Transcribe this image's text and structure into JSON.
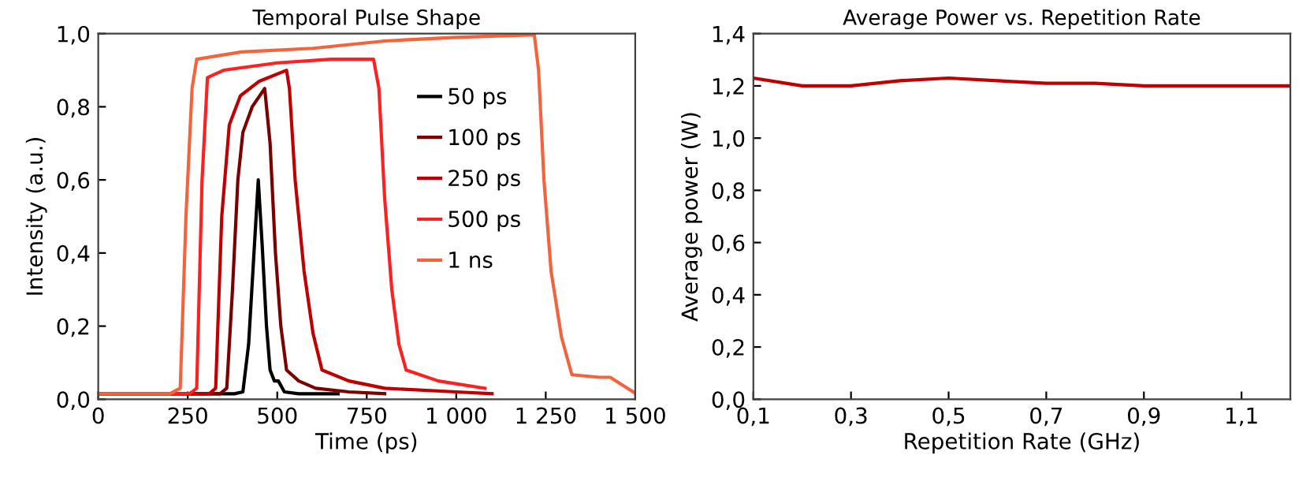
{
  "chart_data": [
    {
      "type": "line",
      "title": "Temporal Pulse Shape",
      "xlabel": "Time (ps)",
      "ylabel": "Intensity (a.u.)",
      "xlim": [
        0,
        1500
      ],
      "ylim": [
        0,
        1.0
      ],
      "xticks": [
        0,
        250,
        500,
        750,
        {
          "value": 1000,
          "label": "1 000"
        },
        {
          "value": 1250,
          "label": "1 250"
        },
        {
          "value": 1500,
          "label": "1 500"
        }
      ],
      "yticks": [
        {
          "value": 0,
          "label": "0,0"
        },
        {
          "value": 0.2,
          "label": "0,2"
        },
        {
          "value": 0.4,
          "label": "0,4"
        },
        {
          "value": 0.6,
          "label": "0,6"
        },
        {
          "value": 0.8,
          "label": "0,8"
        },
        {
          "value": 1.0,
          "label": "1,0"
        }
      ],
      "grid": false,
      "legend": "right",
      "marker": "none",
      "line_style": "solid",
      "series": [
        {
          "name": "50 ps",
          "color": "#000000",
          "x": [
            0,
            380,
            404,
            420,
            435,
            447,
            458,
            470,
            480,
            492,
            503,
            520,
            560,
            670
          ],
          "values": [
            0.015,
            0.015,
            0.02,
            0.15,
            0.4,
            0.6,
            0.42,
            0.2,
            0.08,
            0.05,
            0.05,
            0.02,
            0.015,
            0.015
          ]
        },
        {
          "name": "100 ps",
          "color": "#7b0000",
          "x": [
            0,
            340,
            359,
            375,
            390,
            404,
            430,
            465,
            480,
            495,
            510,
            526,
            560,
            607,
            700,
            800
          ],
          "values": [
            0.015,
            0.015,
            0.03,
            0.3,
            0.6,
            0.73,
            0.8,
            0.85,
            0.7,
            0.4,
            0.2,
            0.08,
            0.05,
            0.03,
            0.02,
            0.015
          ]
        },
        {
          "name": "250 ps",
          "color": "#c00000",
          "x": [
            0,
            310,
            328,
            345,
            366,
            397,
            450,
            526,
            534,
            550,
            575,
            600,
            625,
            700,
            800,
            1000,
            1100
          ],
          "values": [
            0.015,
            0.015,
            0.03,
            0.5,
            0.75,
            0.83,
            0.87,
            0.9,
            0.85,
            0.6,
            0.35,
            0.18,
            0.08,
            0.05,
            0.03,
            0.02,
            0.015
          ]
        },
        {
          "name": "500 ps",
          "color": "#ff2020",
          "x": [
            0,
            255,
            275,
            290,
            305,
            350,
            500,
            650,
            769,
            784,
            800,
            820,
            840,
            860,
            950,
            1080
          ],
          "values": [
            0.015,
            0.015,
            0.03,
            0.6,
            0.88,
            0.9,
            0.92,
            0.93,
            0.93,
            0.85,
            0.55,
            0.3,
            0.15,
            0.08,
            0.05,
            0.03
          ]
        },
        {
          "name": "1 ns",
          "color": "#f4643c",
          "x": [
            0,
            200,
            229,
            245,
            262,
            275,
            400,
            600,
            800,
            1000,
            1218,
            1230,
            1245,
            1265,
            1294,
            1323,
            1400,
            1430,
            1470,
            1499
          ],
          "values": [
            0.015,
            0.015,
            0.03,
            0.5,
            0.85,
            0.93,
            0.95,
            0.96,
            0.98,
            0.99,
            0.997,
            0.9,
            0.6,
            0.35,
            0.17,
            0.067,
            0.06,
            0.06,
            0.035,
            0.017
          ]
        }
      ]
    },
    {
      "type": "line",
      "title": "Average Power vs. Repetition Rate",
      "xlabel": "Repetition Rate (GHz)",
      "ylabel": "Average power (W)",
      "xlim": [
        0.1,
        1.2
      ],
      "ylim": [
        0,
        1.4
      ],
      "xticks": [
        {
          "value": 0.1,
          "label": "0,1"
        },
        {
          "value": 0.3,
          "label": "0,3"
        },
        {
          "value": 0.5,
          "label": "0,5"
        },
        {
          "value": 0.7,
          "label": "0,7"
        },
        {
          "value": 0.9,
          "label": "0,9"
        },
        {
          "value": 1.1,
          "label": "1,1"
        }
      ],
      "yticks": [
        {
          "value": 0,
          "label": "0,0"
        },
        {
          "value": 0.2,
          "label": "0,2"
        },
        {
          "value": 0.4,
          "label": "0,4"
        },
        {
          "value": 0.6,
          "label": "0,6"
        },
        {
          "value": 0.8,
          "label": "0,8"
        },
        {
          "value": 1.0,
          "label": "1,0"
        },
        {
          "value": 1.2,
          "label": "1,2"
        },
        {
          "value": 1.4,
          "label": "1,4"
        }
      ],
      "grid": false,
      "legend": false,
      "marker": "none",
      "line_style": "solid",
      "series": [
        {
          "color": "#c00000",
          "x": [
            0.1,
            0.2,
            0.3,
            0.4,
            0.5,
            0.6,
            0.7,
            0.8,
            0.9,
            1.0,
            1.1,
            1.2
          ],
          "values": [
            1.23,
            1.2,
            1.2,
            1.22,
            1.23,
            1.22,
            1.21,
            1.21,
            1.2,
            1.2,
            1.2,
            1.2
          ]
        }
      ]
    }
  ]
}
